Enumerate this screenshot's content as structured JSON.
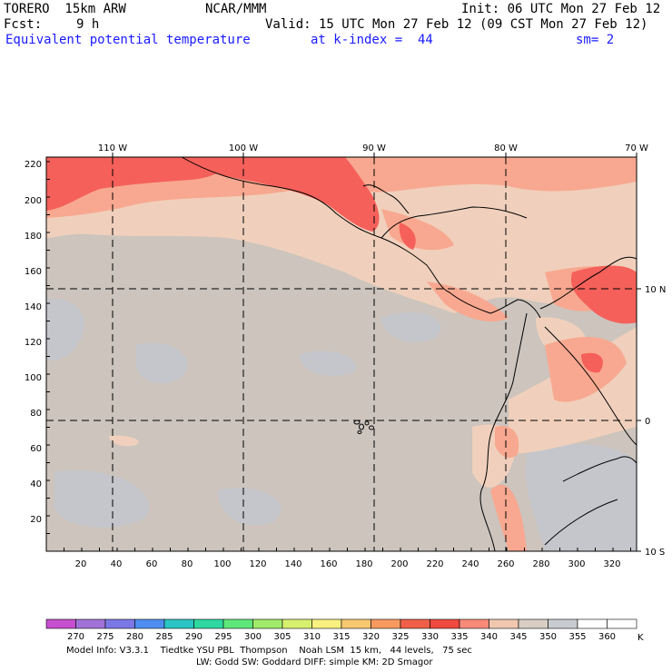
{
  "header": {
    "model": "TORERO  15km ARW",
    "org": "NCAR/MMM",
    "init": "Init: 06 UTC Mon 27 Feb 12",
    "fcst_label": "Fcst:",
    "fcst_value": "9 h",
    "valid": "Valid: 15 UTC Mon 27 Feb 12 (09 CST Mon 27 Feb 12)",
    "field": "Equivalent potential temperature",
    "level": "at k-index =  44",
    "smooth": "sm= 2"
  },
  "axes": {
    "top_lon_labels": [
      "110 W",
      "100 W",
      "90 W",
      "80 W",
      "70 W"
    ],
    "right_lat_labels": [
      "10 N",
      "0",
      "10 S"
    ],
    "y_grid_labels": [
      "220",
      "200",
      "180",
      "160",
      "140",
      "120",
      "100",
      "80",
      "60",
      "40",
      "20"
    ],
    "x_grid_labels": [
      "20",
      "40",
      "60",
      "80",
      "100",
      "120",
      "140",
      "160",
      "180",
      "200",
      "220",
      "240",
      "260",
      "280",
      "300",
      "320"
    ]
  },
  "colorbar": {
    "unit": "K",
    "labels": [
      "270",
      "275",
      "280",
      "285",
      "290",
      "295",
      "300",
      "305",
      "310",
      "315",
      "320",
      "325",
      "330",
      "335",
      "340",
      "345",
      "350",
      "355",
      "360"
    ],
    "colors": [
      "#c74fcf",
      "#a072d8",
      "#7b78e6",
      "#4f8ef0",
      "#2bc4c4",
      "#2ed8a0",
      "#5ee87a",
      "#a0ec6a",
      "#d8f070",
      "#f8f080",
      "#f8c870",
      "#f89a60",
      "#f06048",
      "#f04a40",
      "#f88a78",
      "#f0c8b0",
      "#d8cec4",
      "#c8ccd0",
      "#ffffff",
      "#ffffff"
    ]
  },
  "footer": {
    "line1": "Model Info: V3.3.1    Tiedtke YSU PBL  Thompson    Noah LSM  15 km,   44 levels,   75 sec",
    "line2": "LW: Godd SW: Goddard DIFF: simple KM: 2D Smagor"
  },
  "colors": {
    "base": "#ccc4bd",
    "warm1": "#f0d0bc",
    "warm2": "#f8a890",
    "warm3": "#f5605a",
    "cool": "#c4c6cc",
    "blue_text": "#1a1aff"
  }
}
